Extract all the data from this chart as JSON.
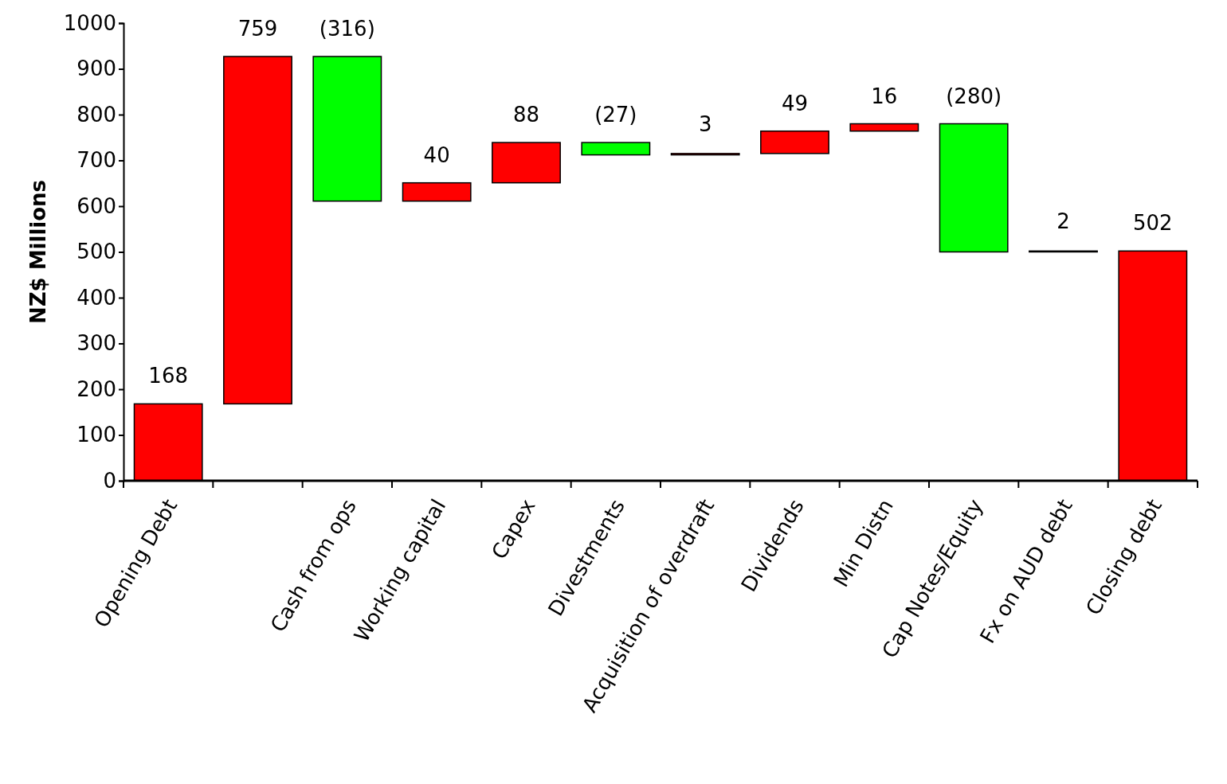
{
  "chart_data": {
    "type": "bar",
    "ylabel": "NZ$ Millions",
    "categories": [
      "Opening Debt",
      null,
      "Cash from ops",
      "Working capital",
      "Capex",
      "Divestments",
      "Acquisition of overdraft",
      "Dividends",
      "Min Distn",
      "Cap Notes/Equity",
      "Fx on AUD debt",
      "Closing debt"
    ],
    "values": [
      168,
      759,
      -316,
      40,
      88,
      -27,
      3,
      49,
      16,
      -280,
      2,
      502
    ],
    "base": [
      0,
      168,
      927,
      611,
      651,
      739,
      712,
      715,
      764,
      780,
      500,
      0
    ],
    "colors": [
      "#ff0000",
      "#ff0000",
      "#00ff00",
      "#ff0000",
      "#ff0000",
      "#00ff00",
      "#ff0000",
      "#ff0000",
      "#ff0000",
      "#00ff00",
      "#ff0000",
      "#ff0000"
    ],
    "value_labels": [
      "168",
      "759",
      "(316)",
      "40",
      "88",
      "(27)",
      "3",
      "49",
      "16",
      "(280)",
      "2",
      "502"
    ],
    "ylim": [
      0,
      1000
    ],
    "yticks": [
      0,
      100,
      200,
      300,
      400,
      500,
      600,
      700,
      800,
      900,
      1000
    ],
    "grid": false
  }
}
